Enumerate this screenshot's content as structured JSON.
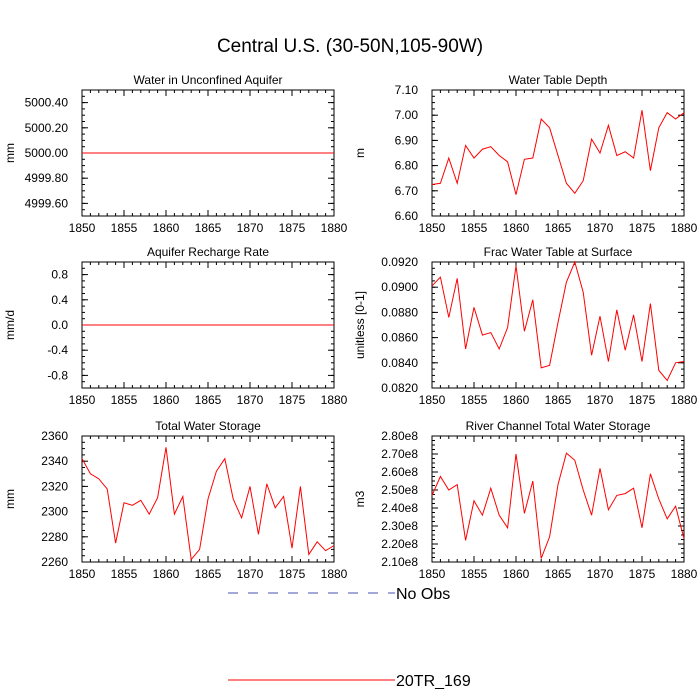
{
  "figure": {
    "title": "Central U.S. (30-50N,105-90W)"
  },
  "legend": {
    "items": [
      {
        "label": "No Obs",
        "color": "#4a50b0",
        "style": "dashed"
      },
      {
        "label": "20TR_169",
        "color": "#ff0000",
        "style": "solid"
      }
    ]
  },
  "chart_data": [
    {
      "type": "line",
      "title": "Water in Unconfined Aquifer",
      "xlabel": "",
      "ylabel": "mm",
      "xlim": [
        1850,
        1880
      ],
      "ylim": [
        4999.5,
        5000.5
      ],
      "xticks": [
        1850,
        1855,
        1860,
        1865,
        1870,
        1875,
        1880
      ],
      "yticks": [
        4999.6,
        4999.8,
        5000.0,
        5000.2,
        5000.4
      ],
      "ytick_labels": [
        "4999.60",
        "4999.80",
        "5000.00",
        "5000.20",
        "5000.40"
      ],
      "series": [
        {
          "name": "20TR_169",
          "color": "#ff0000",
          "x": [
            1850,
            1880
          ],
          "values": [
            5000.0,
            5000.0
          ]
        }
      ]
    },
    {
      "type": "line",
      "title": "Water Table Depth",
      "xlabel": "",
      "ylabel": "m",
      "xlim": [
        1850,
        1880
      ],
      "ylim": [
        6.6,
        7.1
      ],
      "xticks": [
        1850,
        1855,
        1860,
        1865,
        1870,
        1875,
        1880
      ],
      "yticks": [
        6.6,
        6.7,
        6.8,
        6.9,
        7.0,
        7.1
      ],
      "ytick_labels": [
        "6.60",
        "6.70",
        "6.80",
        "6.90",
        "7.00",
        "7.10"
      ],
      "series": [
        {
          "name": "20TR_169",
          "color": "#ff0000",
          "x": [
            1850,
            1851,
            1852,
            1853,
            1854,
            1855,
            1856,
            1857,
            1858,
            1859,
            1860,
            1861,
            1862,
            1863,
            1864,
            1865,
            1866,
            1867,
            1868,
            1869,
            1870,
            1871,
            1872,
            1873,
            1874,
            1875,
            1876,
            1877,
            1878,
            1879,
            1880
          ],
          "values": [
            6.725,
            6.73,
            6.83,
            6.73,
            6.88,
            6.83,
            6.865,
            6.875,
            6.84,
            6.815,
            6.685,
            6.825,
            6.83,
            6.985,
            6.95,
            6.84,
            6.73,
            6.69,
            6.74,
            6.905,
            6.85,
            6.96,
            6.84,
            6.855,
            6.83,
            7.02,
            6.78,
            6.95,
            7.01,
            6.985,
            7.01
          ]
        }
      ]
    },
    {
      "type": "line",
      "title": "Aquifer Recharge Rate",
      "xlabel": "",
      "ylabel": "mm/d",
      "xlim": [
        1850,
        1880
      ],
      "ylim": [
        -1.0,
        1.0
      ],
      "xticks": [
        1850,
        1855,
        1860,
        1865,
        1870,
        1875,
        1880
      ],
      "yticks": [
        -0.8,
        -0.4,
        0.0,
        0.4,
        0.8
      ],
      "ytick_labels": [
        "-0.8",
        "-0.4",
        "0.0",
        "0.4",
        "0.8"
      ],
      "series": [
        {
          "name": "20TR_169",
          "color": "#ff0000",
          "x": [
            1850,
            1880
          ],
          "values": [
            0.0,
            0.0
          ]
        }
      ]
    },
    {
      "type": "line",
      "title": "Frac Water Table at Surface",
      "xlabel": "",
      "ylabel": "unitless [0-1]",
      "xlim": [
        1850,
        1880
      ],
      "ylim": [
        0.082,
        0.092
      ],
      "xticks": [
        1850,
        1855,
        1860,
        1865,
        1870,
        1875,
        1880
      ],
      "yticks": [
        0.082,
        0.084,
        0.086,
        0.088,
        0.09,
        0.092
      ],
      "ytick_labels": [
        "0.0820",
        "0.0840",
        "0.0860",
        "0.0880",
        "0.0900",
        "0.0920"
      ],
      "series": [
        {
          "name": "20TR_169",
          "color": "#ff0000",
          "x": [
            1850,
            1851,
            1852,
            1853,
            1854,
            1855,
            1856,
            1857,
            1858,
            1859,
            1860,
            1861,
            1862,
            1863,
            1864,
            1865,
            1866,
            1867,
            1868,
            1869,
            1870,
            1871,
            1872,
            1873,
            1874,
            1875,
            1876,
            1877,
            1878,
            1879,
            1880
          ],
          "values": [
            0.0901,
            0.0908,
            0.0876,
            0.0907,
            0.0851,
            0.0884,
            0.0862,
            0.0864,
            0.0851,
            0.0868,
            0.0917,
            0.0865,
            0.089,
            0.0836,
            0.0838,
            0.0872,
            0.0904,
            0.092,
            0.0896,
            0.0846,
            0.0877,
            0.0841,
            0.0882,
            0.085,
            0.0878,
            0.0841,
            0.0887,
            0.0834,
            0.0826,
            0.084,
            0.0841
          ]
        }
      ]
    },
    {
      "type": "line",
      "title": "Total Water Storage",
      "xlabel": "",
      "ylabel": "mm",
      "xlim": [
        1850,
        1880
      ],
      "ylim": [
        2260,
        2360
      ],
      "xticks": [
        1850,
        1855,
        1860,
        1865,
        1870,
        1875,
        1880
      ],
      "yticks": [
        2260,
        2280,
        2300,
        2320,
        2340,
        2360
      ],
      "ytick_labels": [
        "2260",
        "2280",
        "2300",
        "2320",
        "2340",
        "2360"
      ],
      "series": [
        {
          "name": "20TR_169",
          "color": "#ff0000",
          "x": [
            1850,
            1851,
            1852,
            1853,
            1854,
            1855,
            1856,
            1857,
            1858,
            1859,
            1860,
            1861,
            1862,
            1863,
            1864,
            1865,
            1866,
            1867,
            1868,
            1869,
            1870,
            1871,
            1872,
            1873,
            1874,
            1875,
            1876,
            1877,
            1878,
            1879,
            1880
          ],
          "values": [
            2342,
            2330,
            2326,
            2318,
            2275,
            2307,
            2305,
            2309,
            2298,
            2311,
            2351,
            2298,
            2312,
            2262,
            2270,
            2310,
            2332,
            2342,
            2310,
            2295,
            2320,
            2282,
            2322,
            2303,
            2312,
            2271,
            2320,
            2266,
            2276,
            2269,
            2273
          ]
        }
      ]
    },
    {
      "type": "line",
      "title": "River Channel Total Water Storage",
      "xlabel": "",
      "ylabel": "m3",
      "xlim": [
        1850,
        1880
      ],
      "ylim": [
        210000000.0,
        280000000.0
      ],
      "xticks": [
        1850,
        1855,
        1860,
        1865,
        1870,
        1875,
        1880
      ],
      "yticks": [
        210000000.0,
        220000000.0,
        230000000.0,
        240000000.0,
        250000000.0,
        260000000.0,
        270000000.0,
        280000000.0
      ],
      "ytick_labels": [
        "2.10e8",
        "2.20e8",
        "2.30e8",
        "2.40e8",
        "2.50e8",
        "2.60e8",
        "2.70e8",
        "2.80e8"
      ],
      "series": [
        {
          "name": "20TR_169",
          "color": "#ff0000",
          "x": [
            1850,
            1851,
            1852,
            1853,
            1854,
            1855,
            1856,
            1857,
            1858,
            1859,
            1860,
            1861,
            1862,
            1863,
            1864,
            1865,
            1866,
            1867,
            1868,
            1869,
            1870,
            1871,
            1872,
            1873,
            1874,
            1875,
            1876,
            1877,
            1878,
            1879,
            1880
          ],
          "values": [
            247000000.0,
            257500000.0,
            250000000.0,
            253000000.0,
            222000000.0,
            244000000.0,
            236000000.0,
            251000000.0,
            236000000.0,
            229000000.0,
            270000000.0,
            237000000.0,
            255000000.0,
            212000000.0,
            224000000.0,
            253000000.0,
            270500000.0,
            266500000.0,
            250000000.0,
            236000000.0,
            262000000.0,
            239000000.0,
            247000000.0,
            248000000.0,
            251000000.0,
            229000000.0,
            259000000.0,
            245000000.0,
            234000000.0,
            241000000.0,
            223000000.0
          ]
        }
      ]
    }
  ]
}
